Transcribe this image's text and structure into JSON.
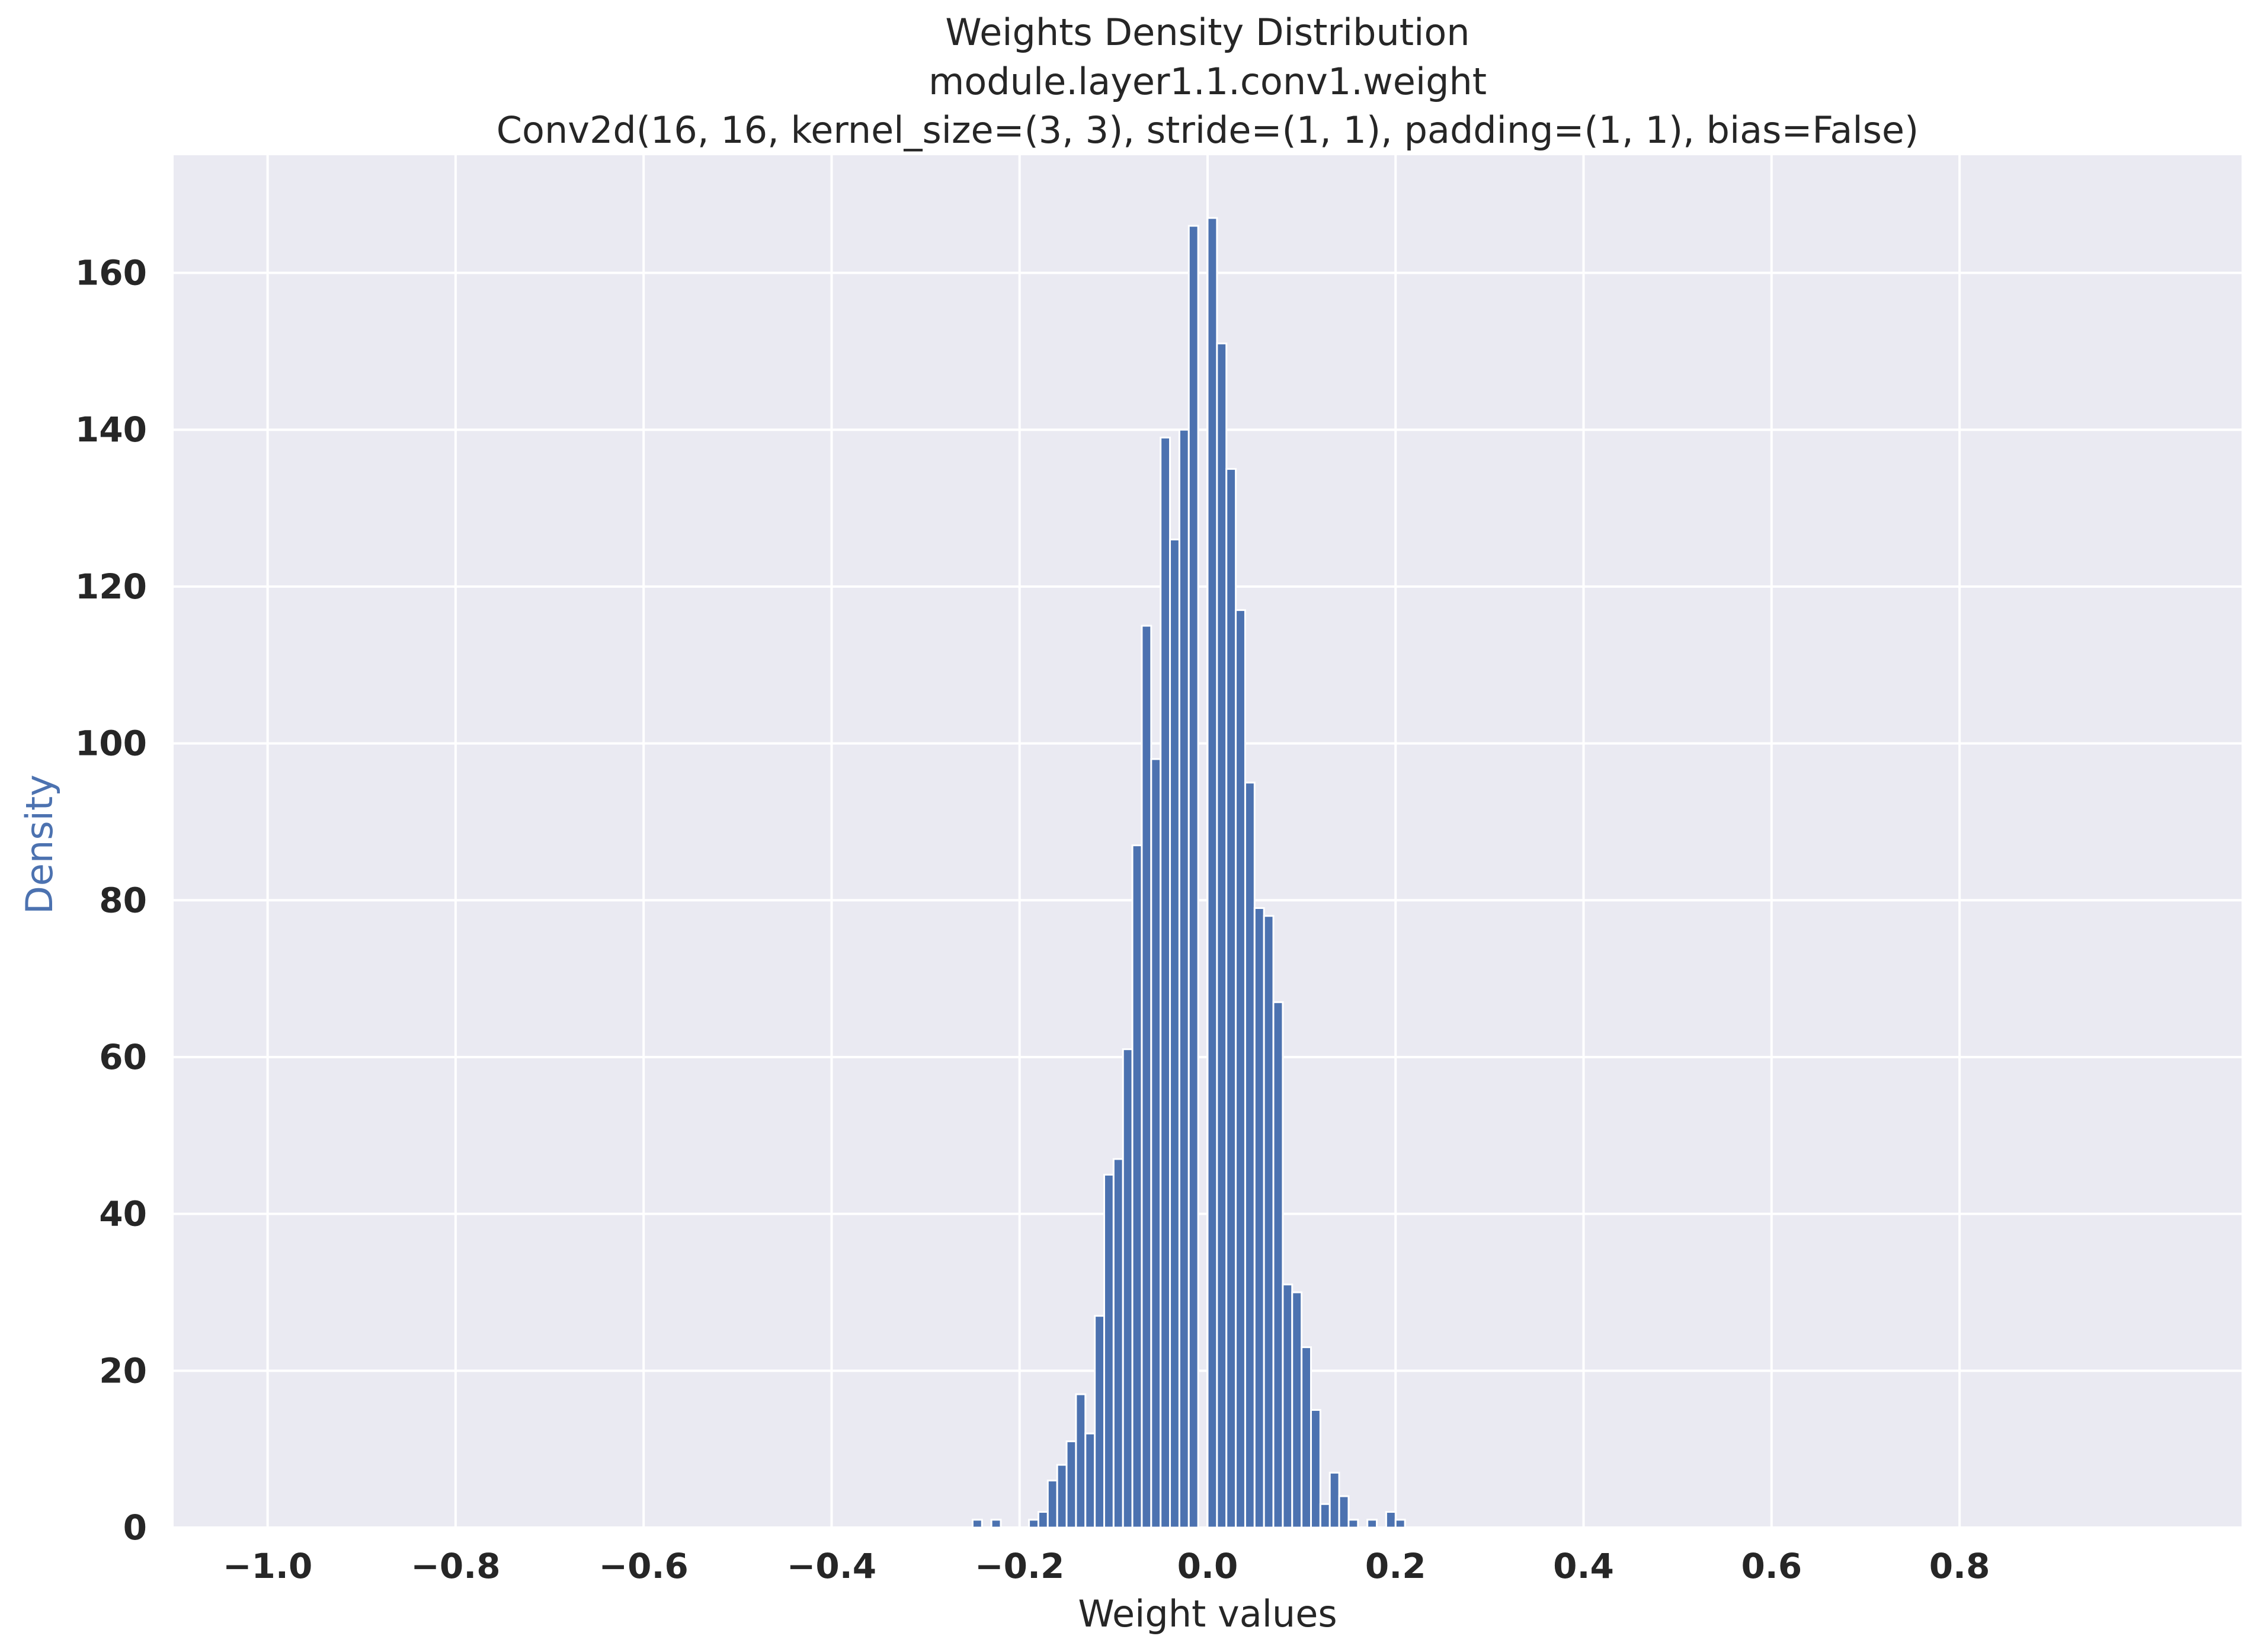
{
  "chart_data": {
    "type": "bar",
    "title_lines": [
      "Weights Density Distribution",
      "module.layer1.1.conv1.weight",
      "Conv2d(16, 16, kernel_size=(3, 3), stride=(1, 1), padding=(1, 1), bias=False)"
    ],
    "xlabel": "Weight values",
    "ylabel": "Density",
    "xlim": [
      -1.1,
      1.1
    ],
    "ylim": [
      0,
      175
    ],
    "x_ticks": [
      -1.0,
      -0.8,
      -0.6,
      -0.4,
      -0.2,
      0.0,
      0.2,
      0.4,
      0.6,
      0.8
    ],
    "x_tick_labels": [
      "−1.0",
      "−0.8",
      "−0.6",
      "−0.4",
      "−0.2",
      "0.0",
      "0.2",
      "0.4",
      "0.6",
      "0.8"
    ],
    "y_ticks": [
      0,
      20,
      40,
      60,
      80,
      100,
      120,
      140,
      160
    ],
    "y_tick_labels": [
      "0",
      "20",
      "40",
      "60",
      "80",
      "100",
      "120",
      "140",
      "160"
    ],
    "grid": true,
    "background_color": "#eaeaf2",
    "bar_color": "#4c72b0",
    "ylabel_color": "#4c72b0",
    "bin_width": 0.01,
    "bins": [
      {
        "x": -0.245,
        "value": 1
      },
      {
        "x": -0.225,
        "value": 1
      },
      {
        "x": -0.185,
        "value": 1
      },
      {
        "x": -0.175,
        "value": 2
      },
      {
        "x": -0.165,
        "value": 6
      },
      {
        "x": -0.155,
        "value": 8
      },
      {
        "x": -0.145,
        "value": 11
      },
      {
        "x": -0.135,
        "value": 17
      },
      {
        "x": -0.125,
        "value": 12
      },
      {
        "x": -0.115,
        "value": 27
      },
      {
        "x": -0.105,
        "value": 45
      },
      {
        "x": -0.095,
        "value": 47
      },
      {
        "x": -0.085,
        "value": 61
      },
      {
        "x": -0.075,
        "value": 87
      },
      {
        "x": -0.065,
        "value": 115
      },
      {
        "x": -0.055,
        "value": 98
      },
      {
        "x": -0.045,
        "value": 139
      },
      {
        "x": -0.035,
        "value": 126
      },
      {
        "x": -0.025,
        "value": 140
      },
      {
        "x": -0.015,
        "value": 166
      },
      {
        "x": -0.005,
        "value": 0
      },
      {
        "x": 0.005,
        "value": 167
      },
      {
        "x": 0.015,
        "value": 151
      },
      {
        "x": 0.025,
        "value": 135
      },
      {
        "x": 0.035,
        "value": 117
      },
      {
        "x": 0.045,
        "value": 95
      },
      {
        "x": 0.055,
        "value": 79
      },
      {
        "x": 0.065,
        "value": 78
      },
      {
        "x": 0.075,
        "value": 67
      },
      {
        "x": 0.085,
        "value": 31
      },
      {
        "x": 0.095,
        "value": 30
      },
      {
        "x": 0.105,
        "value": 23
      },
      {
        "x": 0.115,
        "value": 15
      },
      {
        "x": 0.125,
        "value": 3
      },
      {
        "x": 0.135,
        "value": 7
      },
      {
        "x": 0.145,
        "value": 4
      },
      {
        "x": 0.155,
        "value": 1
      },
      {
        "x": 0.175,
        "value": 1
      },
      {
        "x": 0.195,
        "value": 2
      },
      {
        "x": 0.205,
        "value": 1
      }
    ]
  }
}
